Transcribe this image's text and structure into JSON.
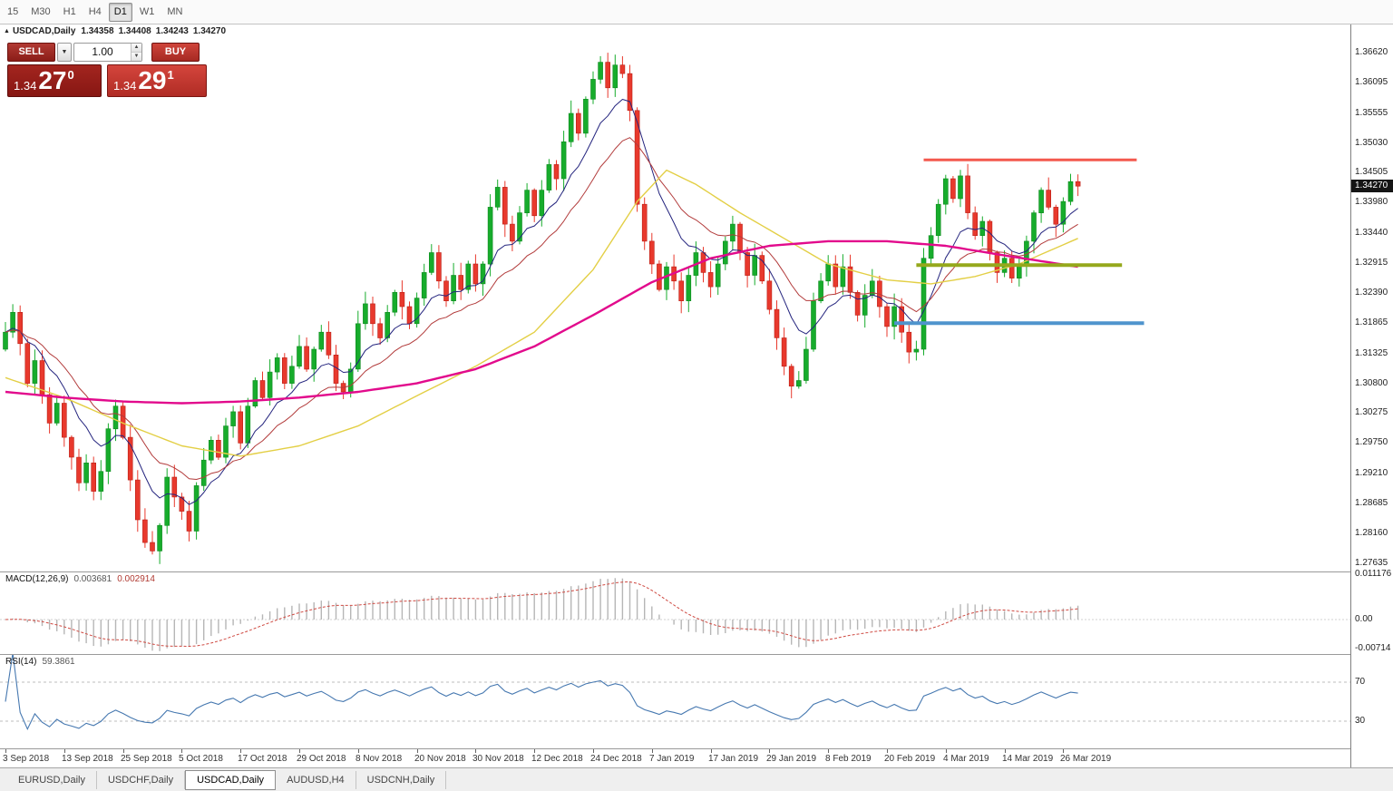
{
  "toolbar": {
    "timeframes": [
      "15",
      "M30",
      "H1",
      "H4",
      "D1",
      "W1",
      "MN"
    ],
    "active": "D1"
  },
  "title_bar": {
    "symbol": "USDCAD,Daily",
    "open": "1.34358",
    "high": "1.34408",
    "low": "1.34243",
    "close": "1.34270"
  },
  "one_click": {
    "sell_label": "SELL",
    "buy_label": "BUY",
    "volume": "1.00",
    "bid": {
      "small": "1.34",
      "big": "27",
      "sup": "0"
    },
    "ask": {
      "small": "1.34",
      "big": "29",
      "sup": "1"
    }
  },
  "panels": {
    "macd": {
      "label": "MACD(12,26,9)",
      "value_main": "0.003681",
      "value_signal": "0.002914",
      "fast": 12,
      "slow": 26,
      "signal": 9,
      "axis": [
        "0.011176",
        "0.00",
        "-0.00714"
      ],
      "axis_values": [
        0.011176,
        0,
        -0.00714
      ],
      "histogram_color": "#b6b6b6",
      "signal_color": "#cf4a42"
    },
    "rsi": {
      "label": "RSI(14)",
      "value": "59.3861",
      "period": 14,
      "levels": [
        70,
        30
      ],
      "line_color": "#4678b0"
    }
  },
  "tabs": {
    "items": [
      {
        "label": "EURUSD,Daily",
        "active": false
      },
      {
        "label": "USDCHF,Daily",
        "active": false
      },
      {
        "label": "USDCAD,Daily",
        "active": true
      },
      {
        "label": "AUDUSD,H4",
        "active": false
      },
      {
        "label": "USDCNH,Daily",
        "active": false
      }
    ]
  },
  "price_axis": {
    "labels": [
      "1.36620",
      "1.36095",
      "1.35555",
      "1.35030",
      "1.34505",
      "1.33980",
      "1.33440",
      "1.32915",
      "1.32390",
      "1.31865",
      "1.31325",
      "1.30800",
      "1.30275",
      "1.29750",
      "1.29210",
      "1.28685",
      "1.28160",
      "1.27635"
    ]
  },
  "chart_data": {
    "type": "candlestick",
    "title": "USDCAD,Daily",
    "ylim": [
      1.2749,
      1.3689
    ],
    "first_open": 1.314,
    "closes": [
      1.317,
      1.3205,
      1.315,
      1.308,
      1.312,
      1.306,
      1.301,
      1.3045,
      1.2985,
      1.295,
      1.2905,
      1.294,
      1.289,
      1.2925,
      1.3,
      1.304,
      1.2985,
      1.291,
      1.284,
      1.28,
      1.2785,
      1.283,
      1.2915,
      1.288,
      1.2855,
      1.282,
      1.29,
      1.2945,
      1.298,
      1.295,
      1.3005,
      1.303,
      1.2975,
      1.304,
      1.3085,
      1.3055,
      1.31,
      1.3125,
      1.308,
      1.311,
      1.3145,
      1.3105,
      1.314,
      1.317,
      1.313,
      1.308,
      1.3065,
      1.3105,
      1.3185,
      1.322,
      1.3185,
      1.316,
      1.3205,
      1.324,
      1.3215,
      1.3185,
      1.323,
      1.3275,
      1.331,
      1.326,
      1.3225,
      1.327,
      1.3245,
      1.329,
      1.3255,
      1.329,
      1.339,
      1.3425,
      1.336,
      1.333,
      1.338,
      1.342,
      1.3375,
      1.342,
      1.3465,
      1.344,
      1.3505,
      1.3555,
      1.352,
      1.358,
      1.3615,
      1.3645,
      1.36,
      1.364,
      1.3625,
      1.356,
      1.3395,
      1.333,
      1.329,
      1.3245,
      1.3285,
      1.326,
      1.3225,
      1.327,
      1.331,
      1.3275,
      1.325,
      1.329,
      1.333,
      1.336,
      1.331,
      1.327,
      1.3305,
      1.326,
      1.321,
      1.316,
      1.311,
      1.3075,
      1.3085,
      1.314,
      1.3225,
      1.326,
      1.329,
      1.325,
      1.3285,
      1.324,
      1.32,
      1.3235,
      1.326,
      1.3215,
      1.318,
      1.3215,
      1.317,
      1.3135,
      1.314,
      1.33,
      1.334,
      1.3395,
      1.344,
      1.3405,
      1.3445,
      1.338,
      1.334,
      1.3365,
      1.331,
      1.3275,
      1.33,
      1.3265,
      1.329,
      1.333,
      1.338,
      1.342,
      1.339,
      1.336,
      1.34,
      1.3435,
      1.3427
    ],
    "x_labels": [
      "3 Sep 2018",
      "13 Sep 2018",
      "25 Sep 2018",
      "5 Oct 2018",
      "17 Oct 2018",
      "29 Oct 2018",
      "8 Nov 2018",
      "20 Nov 2018",
      "30 Nov 2018",
      "12 Dec 2018",
      "24 Dec 2018",
      "7 Jan 2019",
      "17 Jan 2019",
      "29 Jan 2019",
      "8 Feb 2019",
      "20 Feb 2019",
      "4 Mar 2019",
      "14 Mar 2019",
      "26 Mar 2019"
    ],
    "x_label_bar_step": 8,
    "current_price": 1.3427,
    "current_price_label": "1.34270",
    "colors": {
      "up": "#17ac2c",
      "down": "#e8392d",
      "up_stroke": "#0e8a1e",
      "down_stroke": "#bb1d13"
    },
    "overlays": [
      {
        "name": "ma-fast-navy",
        "type": "ema",
        "period": 9,
        "color": "#24247e",
        "width": 1
      },
      {
        "name": "ma-medium-red",
        "type": "ema",
        "period": 18,
        "color": "#b23b3b",
        "width": 1
      },
      {
        "name": "ma-slow-yellow",
        "type": "anchors",
        "color": "#e3cf45",
        "width": 1.4,
        "points": [
          [
            0,
            1.309
          ],
          [
            8,
            1.3055
          ],
          [
            16,
            1.301
          ],
          [
            24,
            1.297
          ],
          [
            32,
            1.2952
          ],
          [
            40,
            1.297
          ],
          [
            48,
            1.3005
          ],
          [
            56,
            1.3058
          ],
          [
            64,
            1.311
          ],
          [
            72,
            1.317
          ],
          [
            80,
            1.328
          ],
          [
            86,
            1.34
          ],
          [
            90,
            1.3455
          ],
          [
            94,
            1.343
          ],
          [
            100,
            1.338
          ],
          [
            104,
            1.335
          ],
          [
            112,
            1.329
          ],
          [
            120,
            1.3262
          ],
          [
            126,
            1.3255
          ],
          [
            132,
            1.3268
          ],
          [
            138,
            1.329
          ],
          [
            146,
            1.3335
          ]
        ]
      },
      {
        "name": "ma-trend-magenta",
        "type": "anchors",
        "color": "#e20a8c",
        "width": 2.4,
        "points": [
          [
            0,
            1.3065
          ],
          [
            8,
            1.3055
          ],
          [
            16,
            1.3048
          ],
          [
            24,
            1.3045
          ],
          [
            32,
            1.3048
          ],
          [
            40,
            1.3055
          ],
          [
            48,
            1.3065
          ],
          [
            56,
            1.308
          ],
          [
            64,
            1.3105
          ],
          [
            72,
            1.3145
          ],
          [
            80,
            1.32
          ],
          [
            88,
            1.3258
          ],
          [
            96,
            1.33
          ],
          [
            104,
            1.3322
          ],
          [
            112,
            1.333
          ],
          [
            120,
            1.333
          ],
          [
            128,
            1.3322
          ],
          [
            136,
            1.3305
          ],
          [
            146,
            1.3285
          ]
        ]
      }
    ],
    "hlines": [
      {
        "name": "resistance-red",
        "price": 1.3473,
        "bar_start": 125,
        "bar_end": 154,
        "color": "#f4594e",
        "width": 3
      },
      {
        "name": "support-olive",
        "price": 1.3288,
        "bar_start": 124,
        "bar_end": 152,
        "color": "#95a81c",
        "width": 4
      },
      {
        "name": "support-blue",
        "price": 1.3186,
        "bar_start": 121,
        "bar_end": 155,
        "color": "#4f94cd",
        "width": 4
      }
    ]
  }
}
